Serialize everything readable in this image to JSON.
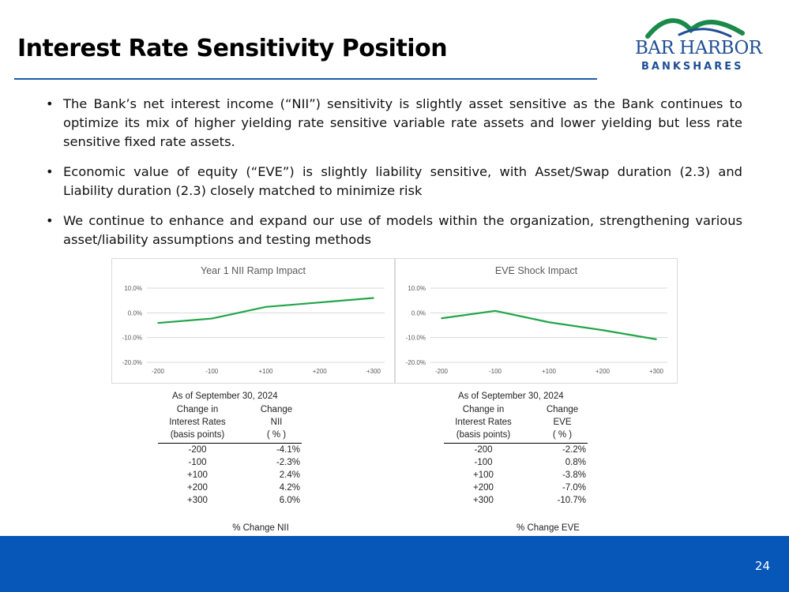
{
  "title": "Interest Rate Sensitivity Position",
  "logo": {
    "line1": "BAR HARBOR",
    "line2": "BANKSHARES",
    "brand_color": "#1f4e96",
    "accent_color": "#1a8a4a"
  },
  "bullets": [
    "The Bank’s net interest income (“NII”) sensitivity is slightly asset sensitive as the Bank continues to optimize its mix of higher yielding rate sensitive variable rate assets and lower yielding but less rate sensitive fixed rate assets.",
    "Economic value of equity (“EVE”) is slightly liability sensitive, with Asset/Swap duration (2.3) and Liability duration (2.3) closely matched to minimize risk",
    "We continue to enhance and expand our use of models within the organization, strengthening various asset/liability assumptions and testing methods"
  ],
  "chart_data": [
    {
      "type": "line",
      "title": "Year 1 NII Ramp Impact",
      "categories": [
        "-200",
        "-100",
        "+100",
        "+200",
        "+300"
      ],
      "values": [
        -4.1,
        -2.3,
        2.4,
        4.2,
        6.0
      ],
      "ylim": [
        -20,
        10
      ],
      "yticks": [
        "10.0%",
        "0.0%",
        "-10.0%",
        "-20.0%"
      ],
      "ytick_values": [
        10,
        0,
        -10,
        -20
      ],
      "line_color": "#22a54a"
    },
    {
      "type": "line",
      "title": "EVE Shock Impact",
      "categories": [
        "-200",
        "-100",
        "+100",
        "+200",
        "+300"
      ],
      "values": [
        -2.2,
        0.8,
        -3.8,
        -7.0,
        -10.7
      ],
      "ylim": [
        -20,
        10
      ],
      "yticks": [
        "10.0%",
        "0.0%",
        "-10.0%",
        "-20.0%"
      ],
      "ytick_values": [
        10,
        0,
        -10,
        -20
      ],
      "line_color": "#22a54a"
    }
  ],
  "tables": [
    {
      "as_of": "As of September 30, 2024",
      "col1_header": [
        "Change in",
        "Interest Rates",
        "(basis points)"
      ],
      "col2_header": [
        "Change",
        "NII",
        "( % )"
      ],
      "rows": [
        [
          "-200",
          "-4.1%"
        ],
        [
          "-100",
          "-2.3%"
        ],
        [
          "+100",
          "2.4%"
        ],
        [
          "+200",
          "4.2%"
        ],
        [
          "+300",
          "6.0%"
        ]
      ],
      "footer": "% Change NII"
    },
    {
      "as_of": "As of September 30, 2024",
      "col1_header": [
        "Change in",
        "Interest Rates",
        "(basis points)"
      ],
      "col2_header": [
        "Change",
        "EVE",
        "( % )"
      ],
      "rows": [
        [
          "-200",
          "-2.2%"
        ],
        [
          "-100",
          "0.8%"
        ],
        [
          "+100",
          "-3.8%"
        ],
        [
          "+200",
          "-7.0%"
        ],
        [
          "+300",
          "-10.7%"
        ]
      ],
      "footer": "% Change EVE"
    }
  ],
  "page_number": "24",
  "footer_color": "#0757b8"
}
